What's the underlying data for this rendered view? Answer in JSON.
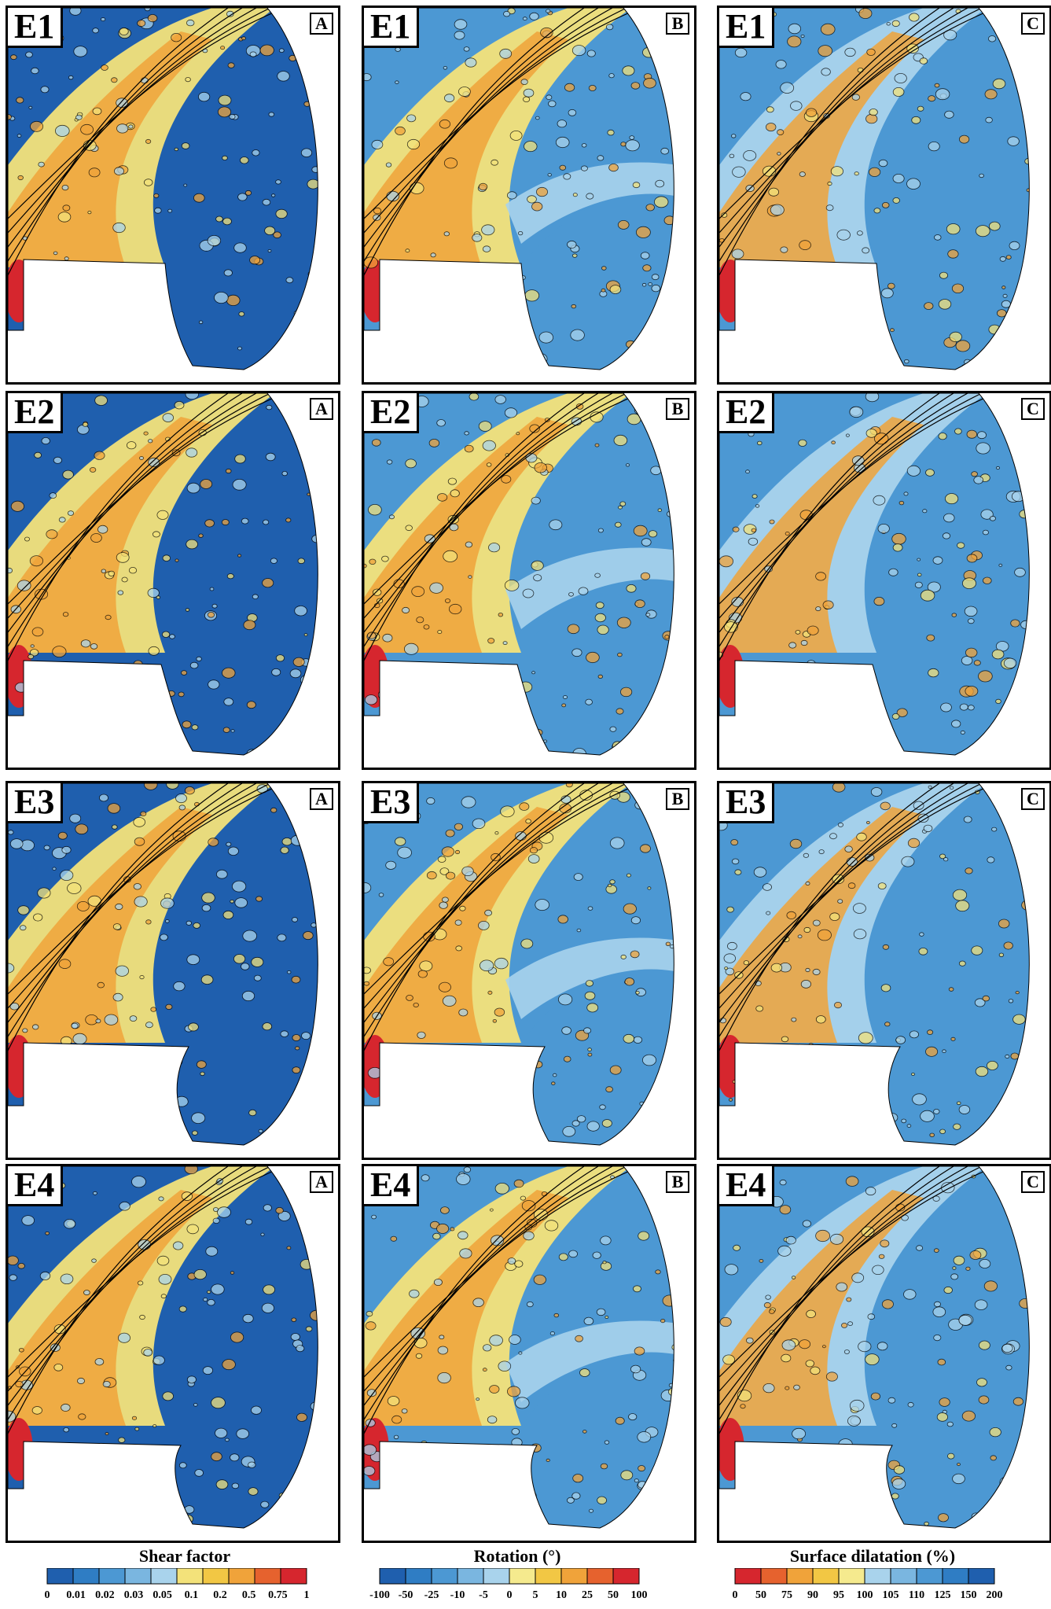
{
  "rows": [
    {
      "id": "E1",
      "panels": [
        "A",
        "B",
        "C"
      ]
    },
    {
      "id": "E2",
      "panels": [
        "A",
        "B",
        "C"
      ]
    },
    {
      "id": "E3",
      "panels": [
        "A",
        "B",
        "C"
      ]
    },
    {
      "id": "E4",
      "panels": [
        "A",
        "B",
        "C"
      ]
    }
  ],
  "legends": [
    {
      "title": "Shear factor",
      "ticks": [
        "0",
        "0.01",
        "0.02",
        "0.03",
        "0.05",
        "0.1",
        "0.2",
        "0.5",
        "0.75",
        "1"
      ],
      "colors": [
        "#1f5fae",
        "#2f7dc4",
        "#4c98d3",
        "#7ab6e0",
        "#a9d3ec",
        "#f3e27a",
        "#f2c744",
        "#f0a33a",
        "#e6622e",
        "#d6262e"
      ]
    },
    {
      "title": "Rotation (°)",
      "ticks": [
        "-100",
        "-50",
        "-25",
        "-10",
        "-5",
        "0",
        "5",
        "10",
        "25",
        "50",
        "100"
      ],
      "colors": [
        "#1f5fae",
        "#2f7dc4",
        "#4c98d3",
        "#7ab6e0",
        "#a9d3ec",
        "#f5ea8e",
        "#f2c744",
        "#f0a33a",
        "#e6622e",
        "#d6262e"
      ]
    },
    {
      "title": "Surface dilatation (%)",
      "ticks": [
        "0",
        "50",
        "75",
        "90",
        "95",
        "100",
        "105",
        "110",
        "125",
        "150",
        "200"
      ],
      "colors": [
        "#d6262e",
        "#e6622e",
        "#f0a33a",
        "#f2c744",
        "#f5ea8e",
        "#a9d3ec",
        "#7ab6e0",
        "#4c98d3",
        "#2f7dc4",
        "#1f5fae"
      ]
    }
  ],
  "colors": {
    "dark_blue": "#1f5fae",
    "mid_blue": "#4c98d3",
    "light_blue": "#a9d3ec",
    "yellow": "#f3e27a",
    "orange": "#f0a33a",
    "red": "#d6262e"
  }
}
